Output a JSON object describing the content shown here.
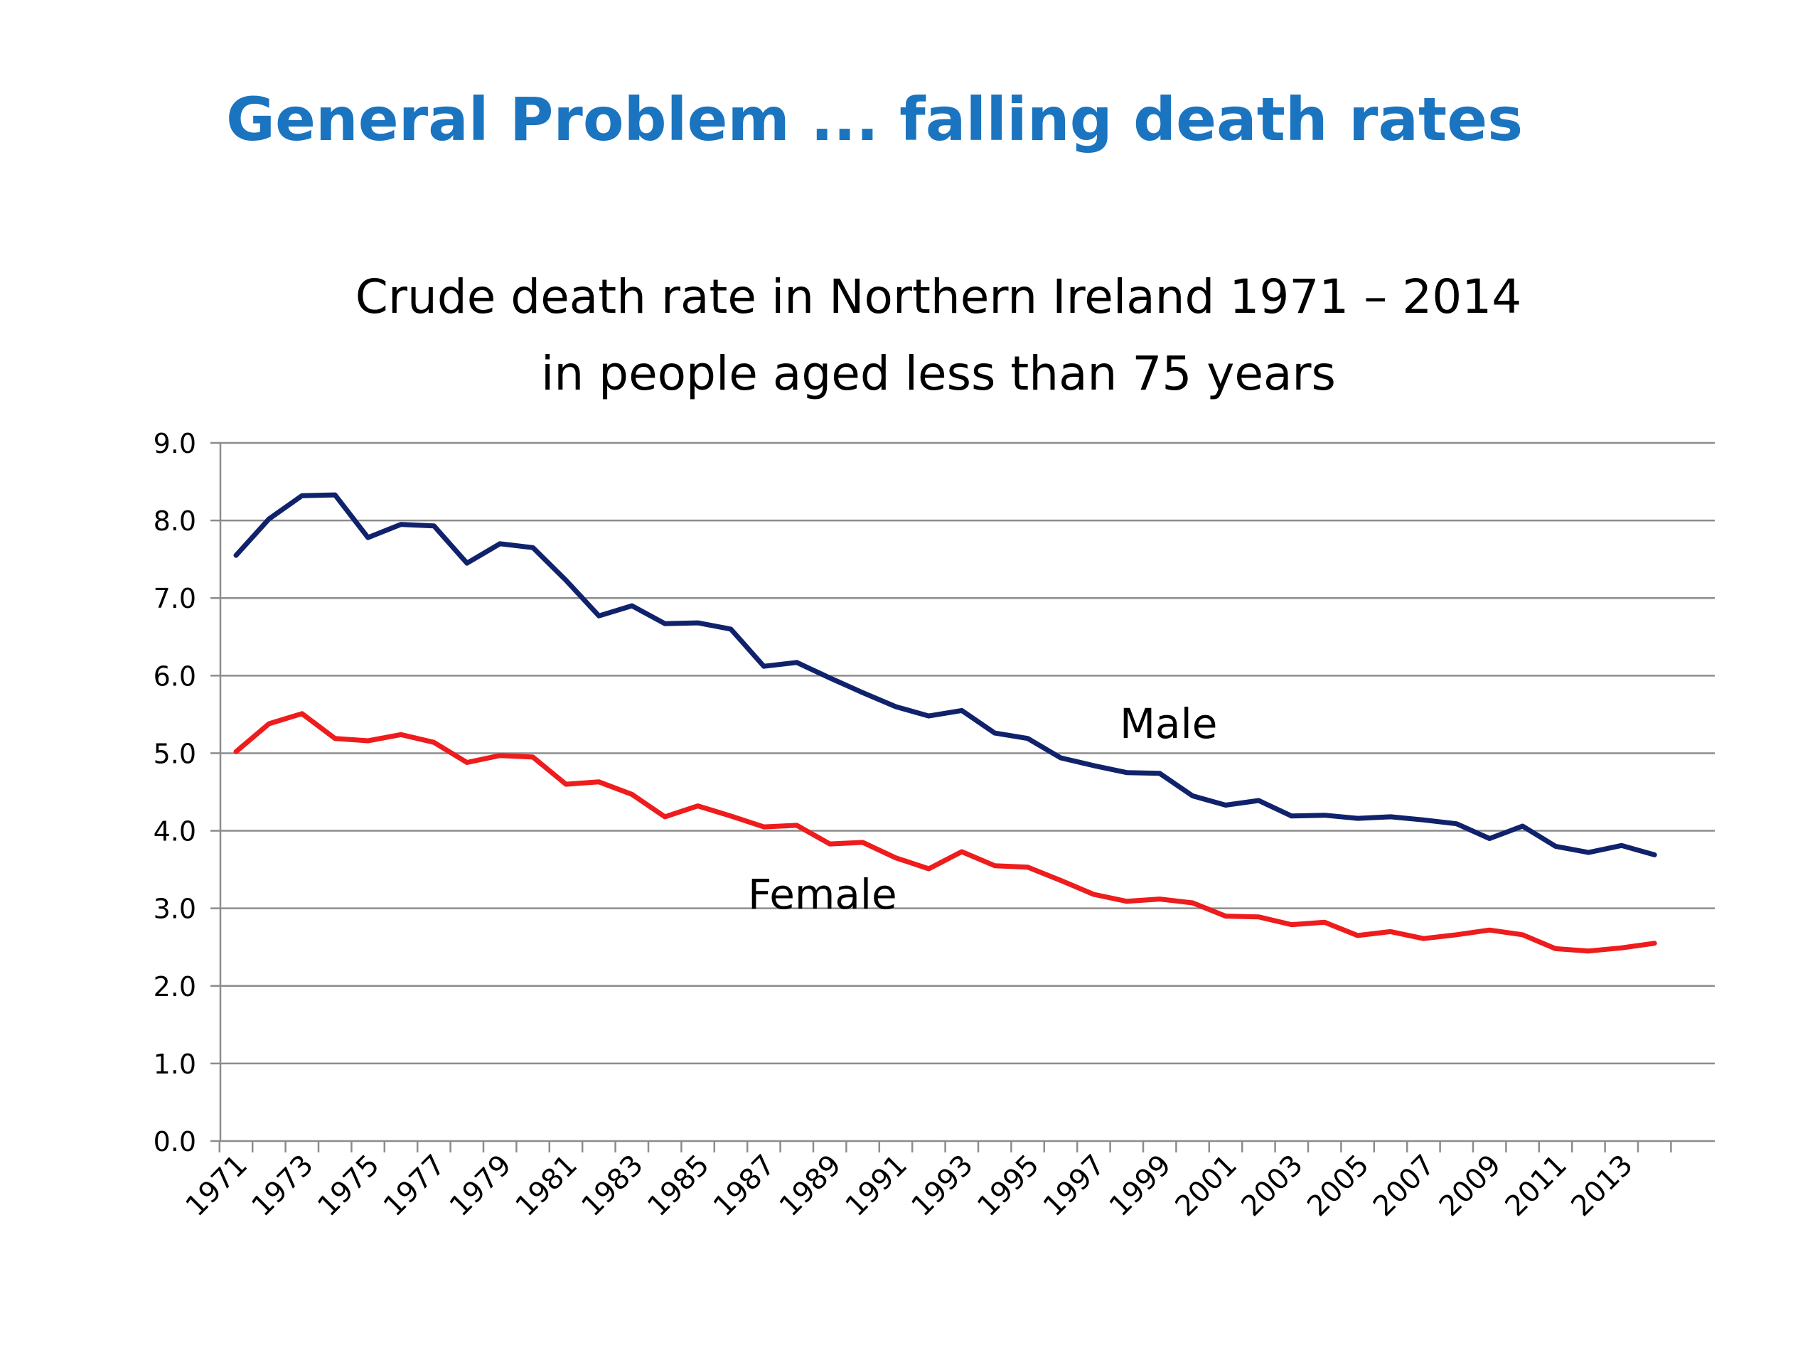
{
  "slide": {
    "title": "General Problem ... falling death rates"
  },
  "chart_data": {
    "type": "line",
    "title": [
      "Crude death rate in Northern Ireland 1971 – 2014",
      "in people aged less than 75 years"
    ],
    "xlabel": "",
    "ylabel": "",
    "ylim": [
      0,
      9
    ],
    "yticks": [
      "0.0",
      "1.0",
      "2.0",
      "3.0",
      "4.0",
      "5.0",
      "6.0",
      "7.0",
      "8.0",
      "9.0"
    ],
    "x": [
      1971,
      1972,
      1973,
      1974,
      1975,
      1976,
      1977,
      1978,
      1979,
      1980,
      1981,
      1982,
      1983,
      1984,
      1985,
      1986,
      1987,
      1988,
      1989,
      1990,
      1991,
      1992,
      1993,
      1994,
      1995,
      1996,
      1997,
      1998,
      1999,
      2000,
      2001,
      2002,
      2003,
      2004,
      2005,
      2006,
      2007,
      2008,
      2009,
      2010,
      2011,
      2012,
      2013,
      2014
    ],
    "xtick_labels": [
      "1971",
      "1973",
      "1975",
      "1977",
      "1979",
      "1981",
      "1983",
      "1985",
      "1987",
      "1989",
      "1991",
      "1993",
      "1995",
      "1997",
      "1999",
      "2001",
      "2003",
      "2005",
      "2007",
      "2009",
      "2011",
      "2013"
    ],
    "grid": true,
    "legend": "none",
    "series": [
      {
        "name": "Male",
        "color": "#10226b",
        "values": [
          7.55,
          8.02,
          8.32,
          8.33,
          7.78,
          7.95,
          7.93,
          7.45,
          7.7,
          7.65,
          7.23,
          6.77,
          6.9,
          6.67,
          6.68,
          6.6,
          6.12,
          6.17,
          5.97,
          5.78,
          5.6,
          5.48,
          5.55,
          5.26,
          5.19,
          4.94,
          4.84,
          4.75,
          4.74,
          4.45,
          4.33,
          4.39,
          4.19,
          4.2,
          4.16,
          4.18,
          4.14,
          4.09,
          3.9,
          4.06,
          3.8,
          3.72,
          3.81,
          3.69
        ]
      },
      {
        "name": "Female",
        "color": "#ee1c1c",
        "values": [
          5.02,
          5.38,
          5.51,
          5.19,
          5.16,
          5.24,
          5.14,
          4.88,
          4.97,
          4.95,
          4.6,
          4.63,
          4.47,
          4.18,
          4.32,
          4.19,
          4.05,
          4.07,
          3.83,
          3.85,
          3.65,
          3.51,
          3.73,
          3.55,
          3.53,
          3.36,
          3.18,
          3.09,
          3.12,
          3.07,
          2.9,
          2.89,
          2.79,
          2.82,
          2.65,
          2.7,
          2.61,
          2.66,
          2.72,
          2.66,
          2.48,
          2.45,
          2.49,
          2.55
        ]
      }
    ]
  }
}
